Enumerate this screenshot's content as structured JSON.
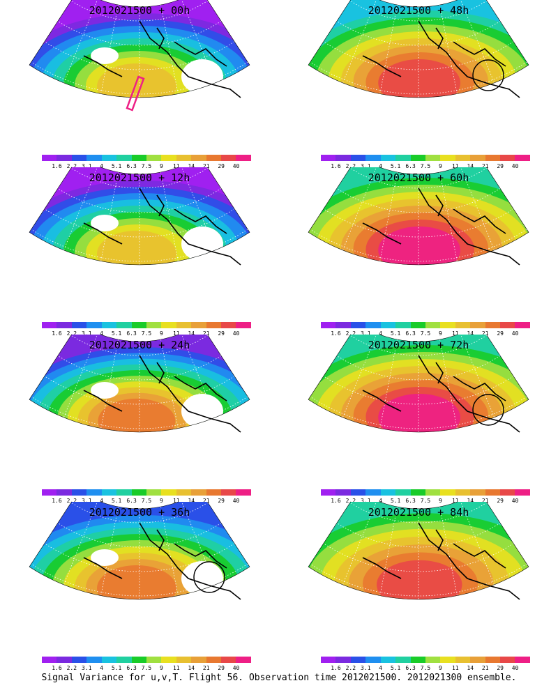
{
  "panels": [
    {
      "title": "2012021500 + 00h",
      "lead": "00h"
    },
    {
      "title": "2012021500 + 48h",
      "lead": "48h"
    },
    {
      "title": "2012021500 + 12h",
      "lead": "12h"
    },
    {
      "title": "2012021500 + 60h",
      "lead": "60h"
    },
    {
      "title": "2012021500 + 24h",
      "lead": "24h"
    },
    {
      "title": "2012021500 + 72h",
      "lead": "72h"
    },
    {
      "title": "2012021500 + 36h",
      "lead": "36h"
    },
    {
      "title": "2012021500 + 84h",
      "lead": "84h"
    }
  ],
  "legend": {
    "colors": [
      "#a020f0",
      "#7b2ae0",
      "#2a50e8",
      "#1f8ff0",
      "#19c2e0",
      "#20d0a0",
      "#19cc29",
      "#a0e040",
      "#e8e020",
      "#e8c030",
      "#e8a038",
      "#e87830",
      "#e84848",
      "#ee1f85"
    ],
    "ticks": [
      "1.6",
      "2.2",
      "3.1",
      "4",
      "5.1",
      "6.3",
      "7.5",
      "9",
      "11",
      "14",
      "21",
      "29",
      "40"
    ]
  },
  "footer": "Signal Variance for u,v,T. Flight 56. Observation time 2012021500. 2012021300 ensemble."
}
